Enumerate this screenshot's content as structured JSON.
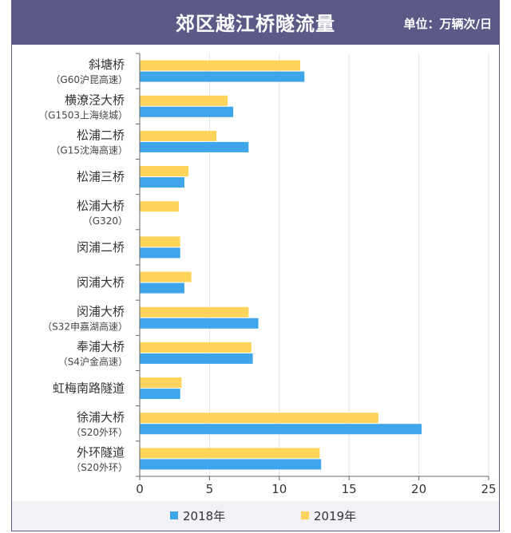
{
  "header": {
    "title": "郊区越江桥隧流量",
    "unit": "单位：万辆次/日"
  },
  "colors": {
    "header_bg": "#5b5a87",
    "series_2018": "#3ea5ea",
    "series_2019": "#ffd45a"
  },
  "chart_data": {
    "type": "bar",
    "orientation": "horizontal",
    "title": "郊区越江桥隧流量",
    "unit": "单位：万辆次/日",
    "categories": [
      {
        "name": "斜塘桥",
        "sub": "（G60沪昆高速）"
      },
      {
        "name": "横潦泾大桥",
        "sub": "（G1503上海绕城）"
      },
      {
        "name": "松浦二桥",
        "sub": "（G15沈海高速）"
      },
      {
        "name": "松浦三桥",
        "sub": ""
      },
      {
        "name": "松浦大桥",
        "sub": "（G320）"
      },
      {
        "name": "闵浦二桥",
        "sub": ""
      },
      {
        "name": "闵浦大桥",
        "sub": ""
      },
      {
        "name": "闵浦大桥",
        "sub": "（S32申嘉湖高速）"
      },
      {
        "name": "奉浦大桥",
        "sub": "（S4沪金高速）"
      },
      {
        "name": "虹梅南路隧道",
        "sub": ""
      },
      {
        "name": "徐浦大桥",
        "sub": "（S20外环）"
      },
      {
        "name": "外环隧道",
        "sub": "（S20外环）"
      }
    ],
    "series": [
      {
        "name": "2018年",
        "color": "#3ea5ea",
        "values": [
          11.8,
          6.7,
          7.8,
          3.2,
          null,
          2.9,
          3.2,
          8.5,
          8.1,
          2.9,
          20.2,
          13.0
        ]
      },
      {
        "name": "2019年",
        "color": "#ffd45a",
        "values": [
          11.5,
          6.3,
          5.5,
          3.5,
          2.8,
          2.9,
          3.7,
          7.8,
          8.0,
          3.0,
          17.1,
          12.9
        ]
      }
    ],
    "xlim": [
      0,
      25
    ],
    "xticks": [
      0,
      5,
      10,
      15,
      20,
      25
    ],
    "grid": true,
    "legend": "bottom-center"
  }
}
